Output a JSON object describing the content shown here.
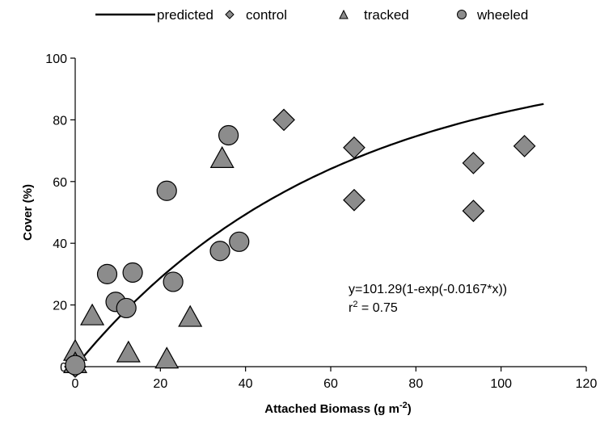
{
  "chart_data": {
    "type": "scatter",
    "xlabel": "Attached Biomass (g m",
    "xlabel_sup": "-2",
    "xlabel_end": ")",
    "ylabel": "Cover (%)",
    "xlim": [
      0,
      120
    ],
    "ylim": [
      0,
      100
    ],
    "xticks": [
      0,
      20,
      40,
      60,
      80,
      100,
      120
    ],
    "yticks": [
      0,
      20,
      40,
      60,
      80,
      100
    ],
    "grid": false,
    "legend_position": "top",
    "legend": [
      "predicted",
      "control",
      "tracked",
      "wheeled"
    ],
    "annotation": {
      "equation": "y=101.29(1-exp(-0.0167*x))",
      "r2_prefix": "r",
      "r2_sup": "2",
      "r2_suffix": " = 0.75"
    },
    "series": [
      {
        "name": "predicted",
        "type": "line",
        "color": "#000000",
        "model": {
          "a": 101.29,
          "b": 0.0167,
          "x_range": [
            0,
            110
          ]
        }
      },
      {
        "name": "control",
        "type": "scatter",
        "marker": "diamond",
        "color": "#8c8c8c",
        "points": [
          {
            "x": 49,
            "y": 80
          },
          {
            "x": 65.5,
            "y": 71
          },
          {
            "x": 65.5,
            "y": 54
          },
          {
            "x": 93.5,
            "y": 66
          },
          {
            "x": 93.5,
            "y": 50.5
          },
          {
            "x": 105.5,
            "y": 71.5
          },
          {
            "x": 0,
            "y": 0
          }
        ]
      },
      {
        "name": "tracked",
        "type": "scatter",
        "marker": "triangle",
        "color": "#8c8c8c",
        "points": [
          {
            "x": 0,
            "y": 5
          },
          {
            "x": 0,
            "y": 1
          },
          {
            "x": 4,
            "y": 16.5
          },
          {
            "x": 12.5,
            "y": 4.5
          },
          {
            "x": 21.5,
            "y": 2.5
          },
          {
            "x": 27,
            "y": 16
          },
          {
            "x": 34.5,
            "y": 67.5
          }
        ]
      },
      {
        "name": "wheeled",
        "type": "scatter",
        "marker": "circle",
        "color": "#8c8c8c",
        "points": [
          {
            "x": 0,
            "y": 0.5
          },
          {
            "x": 7.5,
            "y": 30
          },
          {
            "x": 9.5,
            "y": 21
          },
          {
            "x": 12,
            "y": 19
          },
          {
            "x": 13.5,
            "y": 30.5
          },
          {
            "x": 21.5,
            "y": 57
          },
          {
            "x": 23,
            "y": 27.5
          },
          {
            "x": 34,
            "y": 37.5
          },
          {
            "x": 36,
            "y": 75
          },
          {
            "x": 38.5,
            "y": 40.5
          }
        ]
      }
    ]
  }
}
